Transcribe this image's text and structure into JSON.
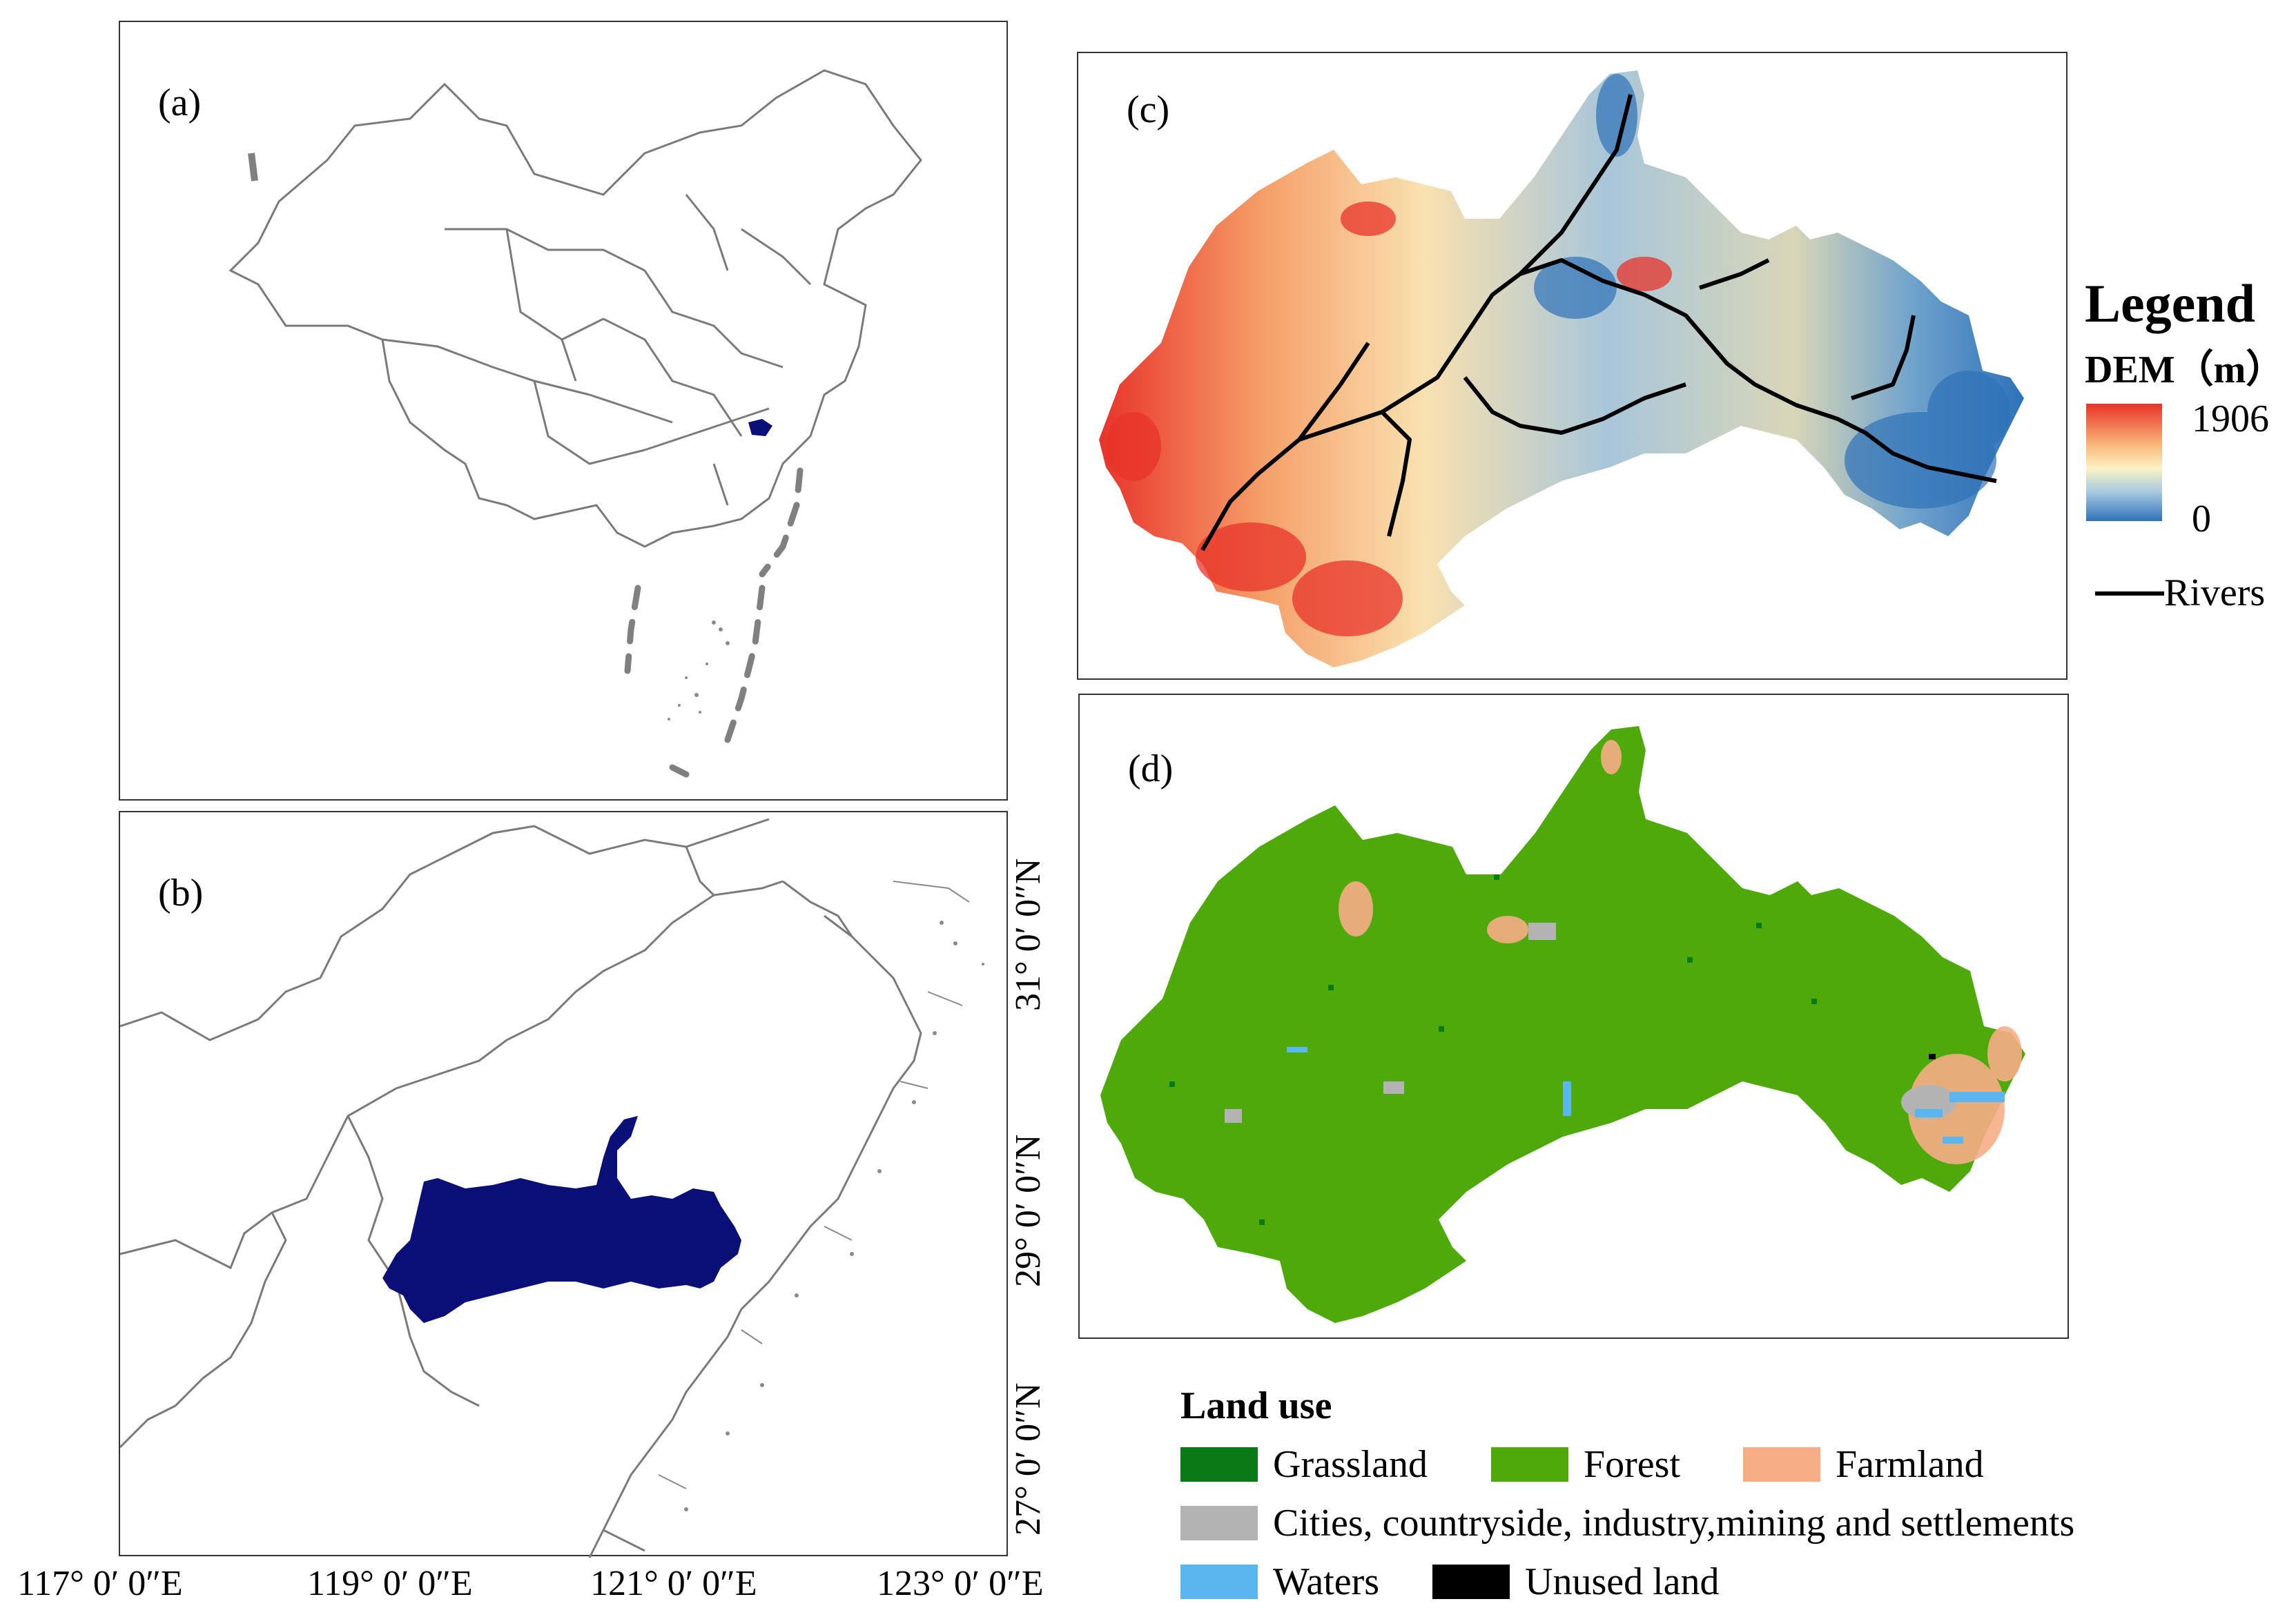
{
  "panels": {
    "a": "(a)",
    "b": "(b)",
    "c": "(c)",
    "d": "(d)"
  },
  "lat_labels": [
    "31° 0′ 0″N",
    "29° 0′ 0″N",
    "27° 0′ 0″N"
  ],
  "lon_labels": [
    "117° 0′ 0″E",
    "119° 0′ 0″E",
    "121° 0′ 0″E",
    "123° 0′ 0″E"
  ],
  "dem_legend": {
    "title": "Legend",
    "subtitle": "DEM（m）",
    "max": "1906",
    "min": "0",
    "rivers": "Rivers"
  },
  "land_use": {
    "title": "Land use",
    "items": [
      {
        "label": "Grassland",
        "color": "#0a7a16"
      },
      {
        "label": "Forest",
        "color": "#4ea90a"
      },
      {
        "label": "Farmland",
        "color": "#f7ad86"
      },
      {
        "label": "Cities, countryside, industry,mining and settlements",
        "color": "#b3b3b3"
      },
      {
        "label": "Waters",
        "color": "#5bb5ef"
      },
      {
        "label": "Unused land",
        "color": "#000000"
      }
    ]
  },
  "colors": {
    "study_area": "#0b0f78",
    "forest": "#4ea90a",
    "dem_high": "#e8332a",
    "dem_low": "#2e72b8"
  }
}
